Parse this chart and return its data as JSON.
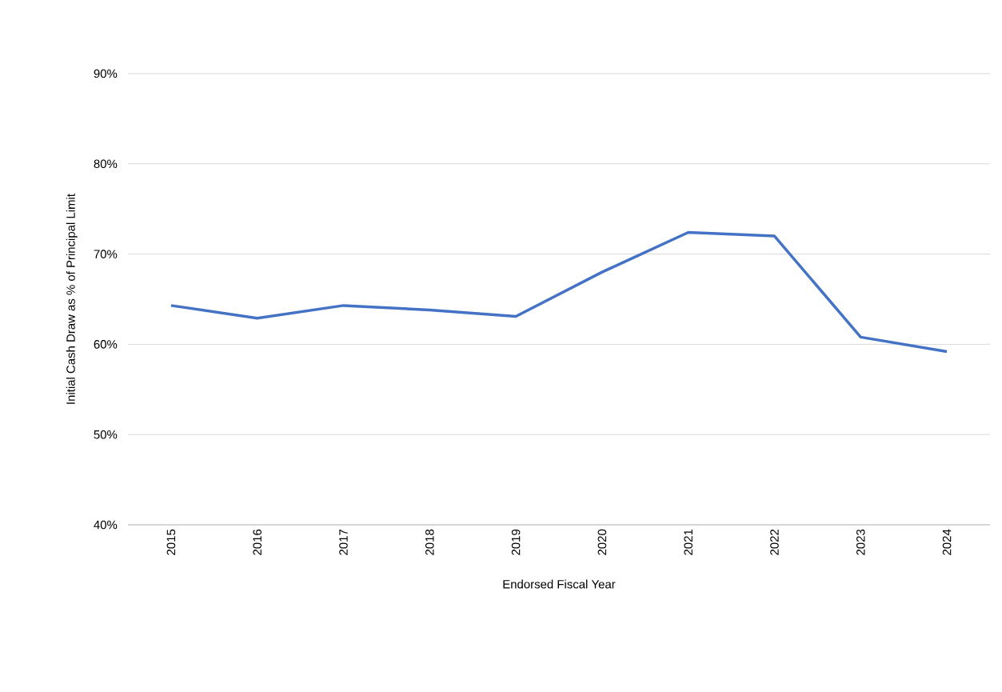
{
  "chart_data": {
    "type": "line",
    "xlabel": "Endorsed Fiscal Year",
    "ylabel": "Initial Cash Draw as % of Principal Limit",
    "categories": [
      "2015",
      "2016",
      "2017",
      "2018",
      "2019",
      "2020",
      "2021",
      "2022",
      "2023",
      "2024"
    ],
    "values": [
      64.3,
      62.9,
      64.3,
      63.8,
      63.1,
      68.0,
      72.4,
      72.0,
      60.8,
      59.2
    ],
    "color": "#4472c4",
    "line_style": "solid",
    "marker": "none",
    "ylim": [
      40,
      90
    ],
    "yticks": [
      {
        "value": 40,
        "label": "40%"
      },
      {
        "value": 50,
        "label": "50%"
      },
      {
        "value": 60,
        "label": "60%"
      },
      {
        "value": 70,
        "label": "70%"
      },
      {
        "value": 80,
        "label": "80%"
      },
      {
        "value": 90,
        "label": "90%"
      }
    ],
    "grid": "y"
  }
}
